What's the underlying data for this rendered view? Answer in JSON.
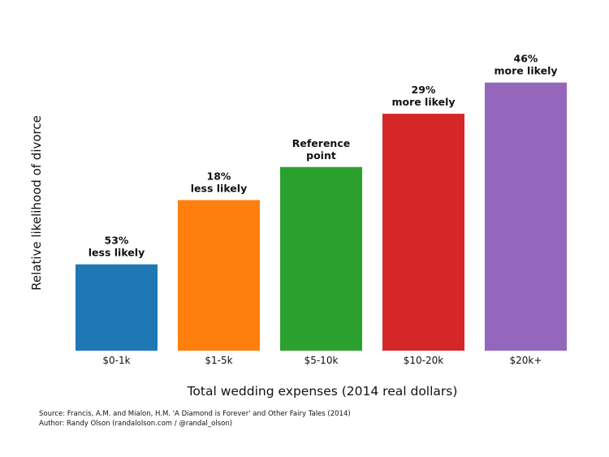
{
  "chart_data": {
    "type": "bar",
    "title": "",
    "xlabel": "Total wedding expenses (2014 real dollars)",
    "ylabel": "Relative likelihood of divorce",
    "categories": [
      "$0-1k",
      "$1-5k",
      "$5-10k",
      "$10-20k",
      "$20k+"
    ],
    "values": [
      0.47,
      0.82,
      1.0,
      1.29,
      1.46
    ],
    "ylim": [
      0,
      1.6
    ],
    "grid": false,
    "y_ticks_visible": false,
    "bar_annotations": [
      [
        "53%",
        "less likely"
      ],
      [
        "18%",
        "less likely"
      ],
      [
        "Reference",
        "point"
      ],
      [
        "29%",
        "more likely"
      ],
      [
        "46%",
        "more likely"
      ]
    ],
    "colors": [
      "#1f77b4",
      "#ff7f0e",
      "#2ca02c",
      "#d62728",
      "#9467bd"
    ]
  },
  "footer": {
    "source": "Source: Francis, A.M. and Mialon, H.M. 'A Diamond is Forever' and Other Fairy Tales (2014)",
    "author": "Author: Randy Olson (randalolson.com / @randal_olson)"
  }
}
